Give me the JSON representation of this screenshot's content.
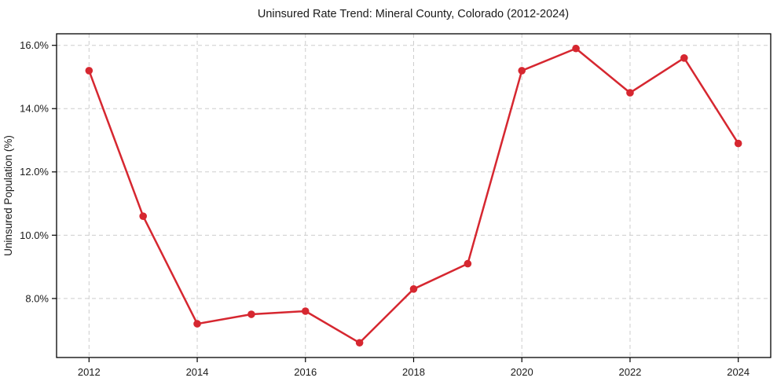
{
  "chart_data": {
    "type": "line",
    "title": "Uninsured Rate Trend: Mineral County, Colorado (2012-2024)",
    "xlabel": "",
    "ylabel": "Uninsured Population (%)",
    "x": [
      2012,
      2013,
      2014,
      2015,
      2016,
      2017,
      2018,
      2019,
      2020,
      2021,
      2022,
      2023,
      2024
    ],
    "values": [
      15.2,
      10.6,
      7.2,
      7.5,
      7.6,
      6.6,
      8.3,
      9.1,
      15.2,
      15.9,
      14.5,
      15.6,
      12.9
    ],
    "xlim": [
      2011.4,
      2024.6
    ],
    "ylim": [
      6.135,
      16.365
    ],
    "x_ticks": [
      2012,
      2014,
      2016,
      2018,
      2020,
      2022,
      2024
    ],
    "x_tick_labels": [
      "2012",
      "2014",
      "2016",
      "2018",
      "2020",
      "2022",
      "2024"
    ],
    "y_ticks": [
      8,
      10,
      12,
      14,
      16
    ],
    "y_tick_labels": [
      "8.0%",
      "10.0%",
      "12.0%",
      "14.0%",
      "16.0%"
    ],
    "grid": true,
    "grid_style": "dashed",
    "legend": false,
    "line_color": "#d62730",
    "grid_color": "#cdcdcd",
    "spine_color": "#000000",
    "marker": "circle"
  }
}
